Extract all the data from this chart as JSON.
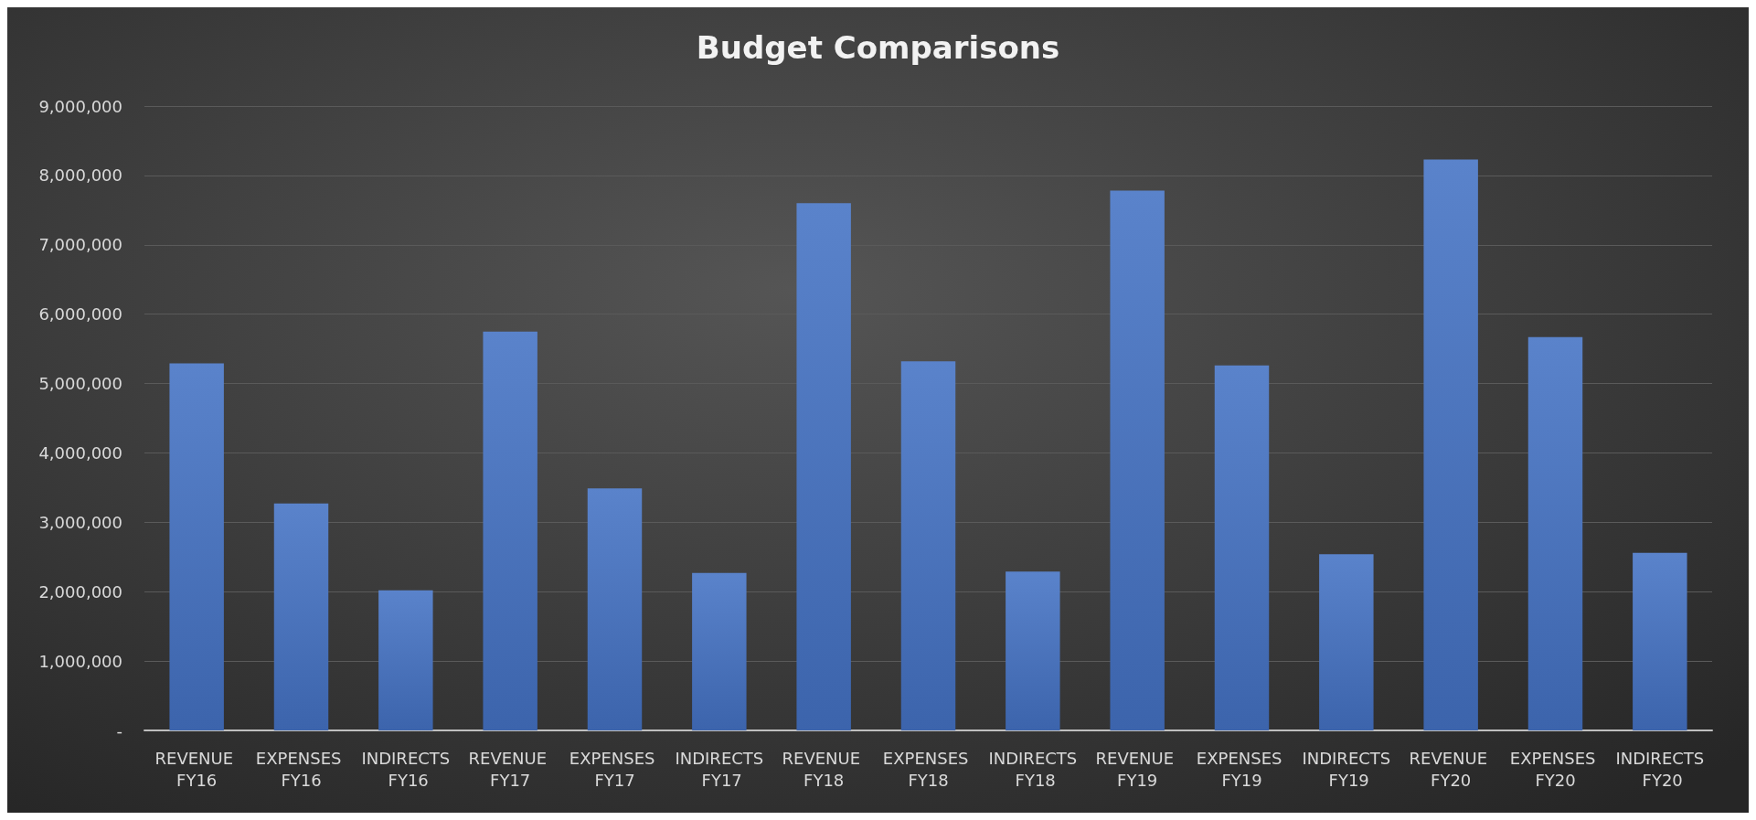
{
  "chart_data": {
    "type": "bar",
    "title": "Budget Comparisons",
    "categories": [
      "REVENUE FY16",
      "EXPENSES FY16",
      "INDIRECTS FY16",
      "REVENUE FY17",
      "EXPENSES FY17",
      "INDIRECTS FY17",
      "REVENUE FY18",
      "EXPENSES FY18",
      "INDIRECTS FY18",
      "REVENUE FY19",
      "EXPENSES FY19",
      "INDIRECTS FY19",
      "REVENUE FY20",
      "EXPENSES FY20",
      "INDIRECTS FY20"
    ],
    "values": [
      5290000,
      3270000,
      2020000,
      5750000,
      3490000,
      2270000,
      7600000,
      5320000,
      2290000,
      7780000,
      5260000,
      2540000,
      8230000,
      5670000,
      2560000
    ],
    "color": "#4472c4",
    "ylim": [
      0,
      9000000
    ],
    "yticks": [
      {
        "value": 0,
        "label": "-"
      },
      {
        "value": 1000000,
        "label": "1,000,000"
      },
      {
        "value": 2000000,
        "label": "2,000,000"
      },
      {
        "value": 3000000,
        "label": "3,000,000"
      },
      {
        "value": 4000000,
        "label": "4,000,000"
      },
      {
        "value": 5000000,
        "label": "5,000,000"
      },
      {
        "value": 6000000,
        "label": "6,000,000"
      },
      {
        "value": 7000000,
        "label": "7,000,000"
      },
      {
        "value": 8000000,
        "label": "8,000,000"
      },
      {
        "value": 9000000,
        "label": "9,000,000"
      }
    ],
    "grid": "y"
  }
}
